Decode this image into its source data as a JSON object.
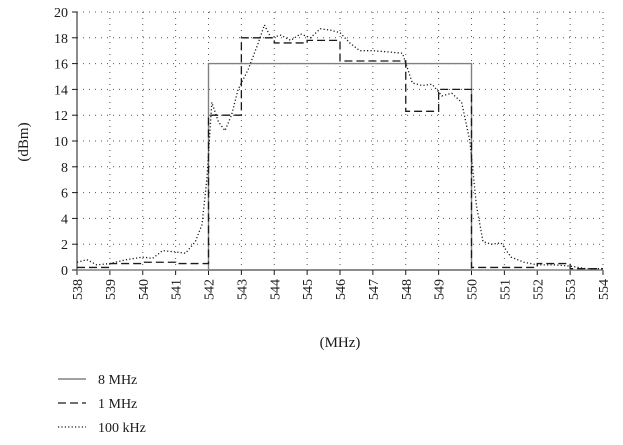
{
  "chart_data": {
    "type": "line",
    "title": "",
    "xlabel": "(MHz)",
    "ylabel": "(dBm)",
    "xlim": [
      538,
      554
    ],
    "ylim": [
      0,
      20
    ],
    "x_ticks": [
      538,
      539,
      540,
      541,
      542,
      543,
      544,
      545,
      546,
      547,
      548,
      549,
      550,
      551,
      552,
      553,
      554
    ],
    "y_ticks": [
      0,
      2,
      4,
      6,
      8,
      10,
      12,
      14,
      16,
      18,
      20
    ],
    "grid": "dotted",
    "legend_position": "bottom-left",
    "series": [
      {
        "name": "8 MHz",
        "style": "solid",
        "color": "#808080",
        "points": [
          [
            538,
            0
          ],
          [
            542,
            0
          ],
          [
            542,
            16
          ],
          [
            550,
            16
          ],
          [
            550,
            0
          ],
          [
            554,
            0
          ]
        ]
      },
      {
        "name": "1 MHz",
        "style": "dashed",
        "color": "#1a1a1a",
        "points": [
          [
            538,
            0.2
          ],
          [
            539,
            0.2
          ],
          [
            539,
            0.5
          ],
          [
            540,
            0.5
          ],
          [
            540,
            0.6
          ],
          [
            541,
            0.6
          ],
          [
            541,
            0.5
          ],
          [
            542,
            0.5
          ],
          [
            542,
            12
          ],
          [
            543,
            12
          ],
          [
            543,
            18
          ],
          [
            544,
            18
          ],
          [
            544,
            17.6
          ],
          [
            545,
            17.6
          ],
          [
            545,
            17.8
          ],
          [
            546,
            17.8
          ],
          [
            546,
            16.2
          ],
          [
            548,
            16.2
          ],
          [
            548,
            12.3
          ],
          [
            549,
            12.3
          ],
          [
            549,
            14
          ],
          [
            550,
            14
          ],
          [
            550,
            0.2
          ],
          [
            551,
            0.2
          ],
          [
            551,
            0.2
          ],
          [
            552,
            0.2
          ],
          [
            552,
            0.5
          ],
          [
            553,
            0.5
          ],
          [
            553,
            0.1
          ],
          [
            554,
            0.1
          ]
        ]
      },
      {
        "name": "100 kHz",
        "style": "dotted",
        "color": "#1a1a1a",
        "points": [
          [
            538,
            0.6
          ],
          [
            538.3,
            0.8
          ],
          [
            538.6,
            0.4
          ],
          [
            539,
            0.5
          ],
          [
            539.5,
            0.8
          ],
          [
            540,
            1.0
          ],
          [
            540.3,
            0.9
          ],
          [
            540.6,
            1.5
          ],
          [
            541,
            1.4
          ],
          [
            541.3,
            1.3
          ],
          [
            541.6,
            2.2
          ],
          [
            541.8,
            3.5
          ],
          [
            541.95,
            7
          ],
          [
            542.1,
            13
          ],
          [
            542.3,
            11.5
          ],
          [
            542.5,
            10.8
          ],
          [
            542.7,
            12
          ],
          [
            542.9,
            14
          ],
          [
            543.2,
            15.5
          ],
          [
            543.5,
            17.5
          ],
          [
            543.7,
            19
          ],
          [
            543.9,
            18
          ],
          [
            544.2,
            18.2
          ],
          [
            544.5,
            17.8
          ],
          [
            544.8,
            18.3
          ],
          [
            545.1,
            18
          ],
          [
            545.4,
            18.7
          ],
          [
            545.7,
            18.6
          ],
          [
            546,
            18.4
          ],
          [
            546.3,
            17.6
          ],
          [
            546.6,
            17
          ],
          [
            547,
            17
          ],
          [
            547.5,
            16.9
          ],
          [
            547.9,
            16.8
          ],
          [
            548.2,
            14.5
          ],
          [
            548.5,
            14.3
          ],
          [
            548.8,
            14.4
          ],
          [
            549.1,
            13.5
          ],
          [
            549.4,
            13.7
          ],
          [
            549.7,
            13
          ],
          [
            549.95,
            10
          ],
          [
            550.15,
            5
          ],
          [
            550.35,
            2.2
          ],
          [
            550.6,
            2.0
          ],
          [
            550.9,
            2.1
          ],
          [
            551.2,
            1.0
          ],
          [
            551.6,
            0.6
          ],
          [
            552,
            0.4
          ],
          [
            552.5,
            0.4
          ],
          [
            553,
            0.3
          ],
          [
            553.5,
            0.1
          ],
          [
            554,
            0.1
          ]
        ]
      }
    ]
  }
}
